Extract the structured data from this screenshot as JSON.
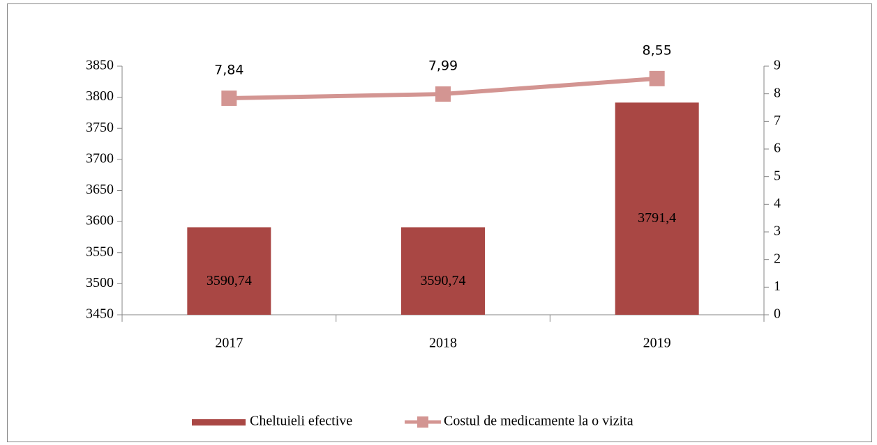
{
  "chart_data": {
    "type": "bar",
    "categories": [
      "2017",
      "2018",
      "2019"
    ],
    "series": [
      {
        "name": "Cheltuieli efective",
        "type": "bar",
        "color": "#a94744",
        "values": [
          3590.74,
          3590.74,
          3791.4
        ],
        "value_labels": [
          "3590,74",
          "3590,74",
          "3791,4"
        ]
      },
      {
        "name": "Costul de medicamente la o vizita",
        "type": "line",
        "axis": "y2",
        "color": "#d39592",
        "values": [
          7.84,
          7.99,
          8.55
        ],
        "value_labels": [
          "7,84",
          "7,99",
          "8,55"
        ]
      }
    ],
    "ylim": [
      3450,
      3850
    ],
    "yticks": [
      3450,
      3500,
      3550,
      3600,
      3650,
      3700,
      3750,
      3800,
      3850
    ],
    "y2lim": [
      0,
      9
    ],
    "y2ticks": [
      0,
      1,
      2,
      3,
      4,
      5,
      6,
      7,
      8,
      9
    ],
    "legend": "bottom"
  }
}
